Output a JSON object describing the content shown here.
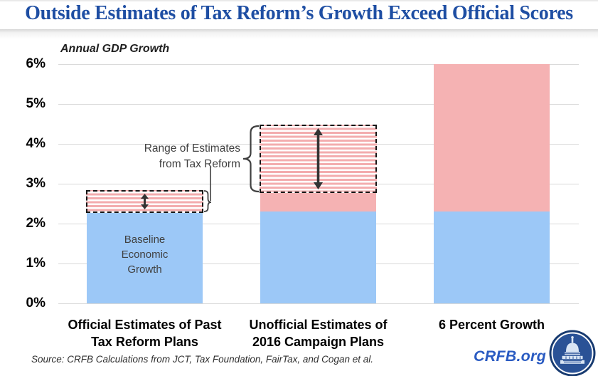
{
  "title": "Outside Estimates of Tax Reform’s Growth Exceed Official Scores",
  "source": "Source: CRFB Calculations from JCT, Tax Foundation, FairTax, and Cogan et al.",
  "watermark": {
    "text": "CRFB.org",
    "logo": "capitol-dome-icon"
  },
  "annotations": {
    "range_label": "Range of Estimates\nfrom Tax Reform",
    "baseline_label": "Baseline\nEconomic\nGrowth"
  },
  "colors": {
    "baseline_blue": "#9CC8F7",
    "estimate_pink": "#F5B2B3",
    "stripe_pink": "#F3ACAE",
    "title_blue": "#1E4EA3",
    "crfb_blue": "#2A5BC2",
    "gridline": "#D9D9D9",
    "annotation_ink": "#404040",
    "arrow_ink": "#333333"
  },
  "chart_data": {
    "type": "bar",
    "title": "Outside Estimates of Tax Reform’s Growth Exceed Official Scores",
    "ylabel": "Annual GDP Growth",
    "xlabel": "",
    "ylim": [
      0,
      6
    ],
    "yticks": [
      "0%",
      "1%",
      "2%",
      "3%",
      "4%",
      "5%",
      "6%"
    ],
    "grid": true,
    "legend_position": "none",
    "categories": [
      "Official Estimates of Past Tax Reform Plans",
      "Unofficial Estimates of 2016 Campaign Plans",
      "6 Percent Growth"
    ],
    "bars": [
      {
        "label_lines": [
          "Official Estimates of Past",
          "Tax Reform Plans"
        ],
        "baseline_growth": 2.3,
        "solid_estimate_top": 2.3,
        "estimate_range": [
          2.3,
          2.8
        ],
        "hatched_range": true
      },
      {
        "label_lines": [
          "Unofficial Estimates of",
          "2016 Campaign Plans"
        ],
        "baseline_growth": 2.3,
        "solid_estimate_top": 2.8,
        "estimate_range": [
          2.8,
          4.45
        ],
        "hatched_range": true
      },
      {
        "label_lines": [
          "6 Percent Growth"
        ],
        "baseline_growth": 2.3,
        "solid_estimate_top": 6.0,
        "estimate_range": null,
        "hatched_range": false
      }
    ]
  }
}
